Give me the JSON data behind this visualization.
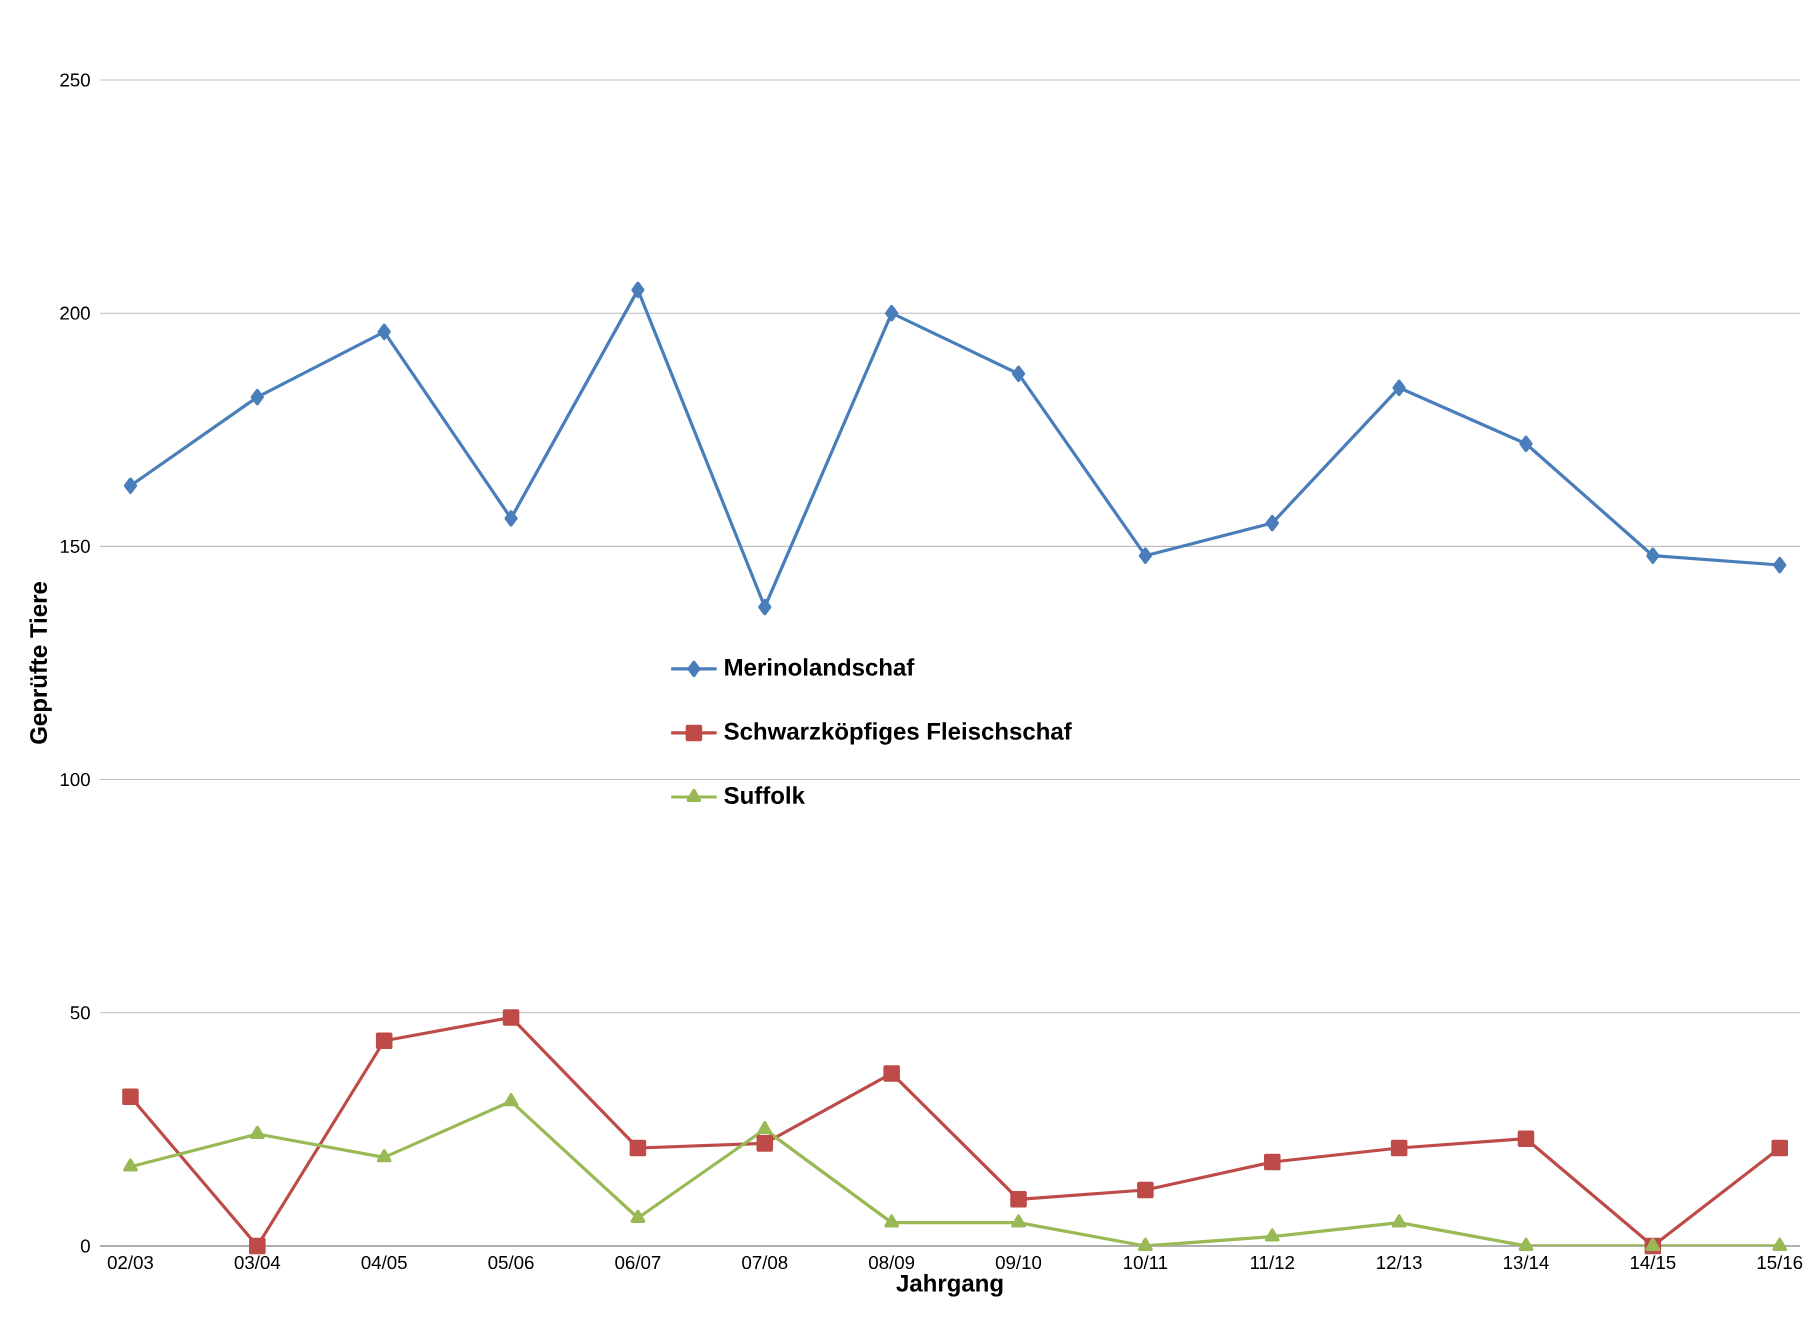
{
  "chart_data": {
    "type": "line",
    "xlabel": "Jahrgang",
    "ylabel": "Geprüfte Tiere",
    "categories": [
      "02/03",
      "03/04",
      "04/05",
      "05/06",
      "06/07",
      "07/08",
      "08/09",
      "09/10",
      "10/11",
      "11/12",
      "12/13",
      "13/14",
      "14/15",
      "15/16"
    ],
    "series": [
      {
        "name": "Merinolandschaf",
        "color": "#4a7ebb",
        "marker": "diamond",
        "values": [
          163,
          182,
          196,
          156,
          205,
          137,
          200,
          187,
          148,
          155,
          184,
          172,
          148,
          146
        ]
      },
      {
        "name": "Schwarzköpfiges Fleischschaf",
        "color": "#be4b48",
        "marker": "square",
        "values": [
          32,
          0,
          44,
          49,
          21,
          22,
          37,
          10,
          12,
          18,
          21,
          23,
          0,
          21
        ]
      },
      {
        "name": "Suffolk",
        "color": "#98b954",
        "marker": "triangle",
        "values": [
          17,
          24,
          19,
          31,
          6,
          25,
          5,
          5,
          0,
          2,
          5,
          0,
          0,
          0
        ]
      }
    ],
    "ylim": [
      0,
      250
    ],
    "yticks": [
      0,
      50,
      100,
      150,
      200,
      250
    ],
    "grid": "y",
    "legend": "center",
    "line_style": "solid"
  }
}
